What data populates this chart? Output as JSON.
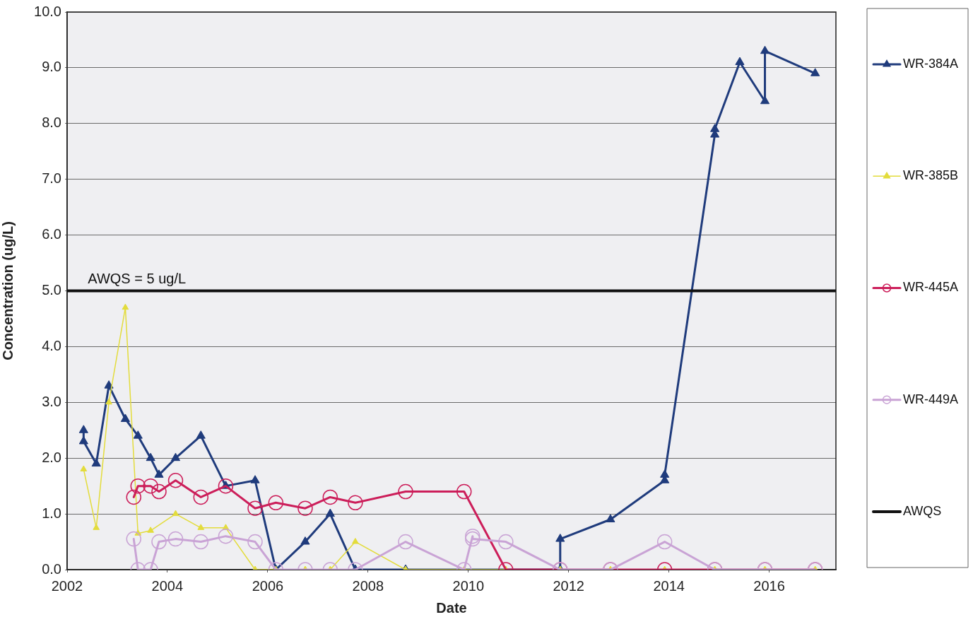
{
  "chart_data": {
    "type": "line",
    "xlabel": "Date",
    "ylabel": "Concentration (ug/L)",
    "xlim": [
      "2002-01",
      "2017-05"
    ],
    "xticks": [
      "2002",
      "2004",
      "2006",
      "2008",
      "2010",
      "2012",
      "2014",
      "2016"
    ],
    "ylim": [
      0,
      10
    ],
    "yticks": [
      {
        "value": 0,
        "label": "0.0"
      },
      {
        "value": 1,
        "label": "1.0"
      },
      {
        "value": 2,
        "label": "2.0"
      },
      {
        "value": 3,
        "label": "3.0"
      },
      {
        "value": 4,
        "label": "4.0"
      },
      {
        "value": 5,
        "label": "5.0"
      },
      {
        "value": 6,
        "label": "6.0"
      },
      {
        "value": 7,
        "label": "7.0"
      },
      {
        "value": 8,
        "label": "8.0"
      },
      {
        "value": 9,
        "label": "9.0"
      },
      {
        "value": 10,
        "label": "10.0"
      }
    ],
    "grid": "y",
    "legend": "right",
    "series": [
      {
        "name": "WR-384A",
        "color": "#1f3b7c",
        "marker": "triangle",
        "x": [
          "2002-05",
          "2002-05",
          "2002-08",
          "2002-11",
          "2003-03",
          "2003-06",
          "2003-09",
          "2003-11",
          "2004-03",
          "2004-09",
          "2005-03",
          "2005-10",
          "2006-03",
          "2006-10",
          "2007-04",
          "2007-10",
          "2008-10",
          "2011-11",
          "2011-11",
          "2012-11",
          "2013-12",
          "2013-12",
          "2014-12",
          "2014-12",
          "2015-06",
          "2015-12",
          "2015-12",
          "2016-12"
        ],
        "values": [
          2.5,
          2.3,
          1.9,
          3.3,
          2.7,
          2.4,
          2.0,
          1.7,
          2.0,
          2.4,
          1.5,
          1.6,
          0,
          0.5,
          1.0,
          0,
          0,
          0,
          0.55,
          0.9,
          1.6,
          1.7,
          7.8,
          7.9,
          9.1,
          8.4,
          9.3,
          8.9
        ]
      },
      {
        "name": "WR-385B",
        "color": "#e3dc3c",
        "marker": "triangle",
        "x": [
          "2002-05",
          "2002-08",
          "2002-11",
          "2003-03",
          "2003-06",
          "2003-09",
          "2004-03",
          "2004-09",
          "2005-03",
          "2005-10",
          "2006-03",
          "2006-10",
          "2007-04",
          "2007-10",
          "2008-10",
          "2009-12",
          "2010-10",
          "2011-11",
          "2012-11",
          "2013-12",
          "2014-12",
          "2015-12",
          "2016-12"
        ],
        "values": [
          1.8,
          0.75,
          3.0,
          4.7,
          0.65,
          0.7,
          1.0,
          0.75,
          0.75,
          0,
          0,
          0,
          0,
          0.5,
          0,
          0,
          0,
          0,
          0,
          0,
          0,
          0,
          0
        ]
      },
      {
        "name": "WR-445A",
        "color": "#cc1e5a",
        "marker": "circle",
        "x": [
          "2003-05",
          "2003-06",
          "2003-09",
          "2003-11",
          "2004-03",
          "2004-09",
          "2005-03",
          "2005-10",
          "2006-03",
          "2006-10",
          "2007-04",
          "2007-10",
          "2008-10",
          "2009-12",
          "2010-10",
          "2011-11",
          "2012-11",
          "2013-12",
          "2014-12",
          "2015-12",
          "2016-12"
        ],
        "values": [
          1.3,
          1.5,
          1.5,
          1.4,
          1.6,
          1.3,
          1.5,
          1.1,
          1.2,
          1.1,
          1.3,
          1.2,
          1.4,
          1.4,
          0,
          0,
          0,
          0,
          0,
          0,
          0
        ]
      },
      {
        "name": "WR-449A",
        "color": "#c9a3d5",
        "marker": "circle",
        "x": [
          "2003-05",
          "2003-06",
          "2003-09",
          "2003-11",
          "2004-03",
          "2004-09",
          "2005-03",
          "2005-10",
          "2006-03",
          "2006-10",
          "2007-04",
          "2007-10",
          "2008-10",
          "2009-12",
          "2010-02",
          "2010-02",
          "2010-10",
          "2011-11",
          "2012-11",
          "2013-12",
          "2014-12",
          "2015-12",
          "2016-12"
        ],
        "values": [
          0.55,
          0,
          0,
          0.5,
          0.55,
          0.5,
          0.6,
          0.5,
          0,
          0,
          0,
          0,
          0.5,
          0,
          0.6,
          0.55,
          0.5,
          0,
          0,
          0.5,
          0,
          0,
          0
        ]
      },
      {
        "name": "AWQS",
        "color": "#111111",
        "marker": "none",
        "x": [
          "2002-01",
          "2017-05"
        ],
        "values": [
          5,
          5
        ]
      }
    ],
    "annotations": [
      {
        "text": "AWQS = 5 ug/L",
        "x": "2002-06",
        "y": 5
      }
    ]
  }
}
